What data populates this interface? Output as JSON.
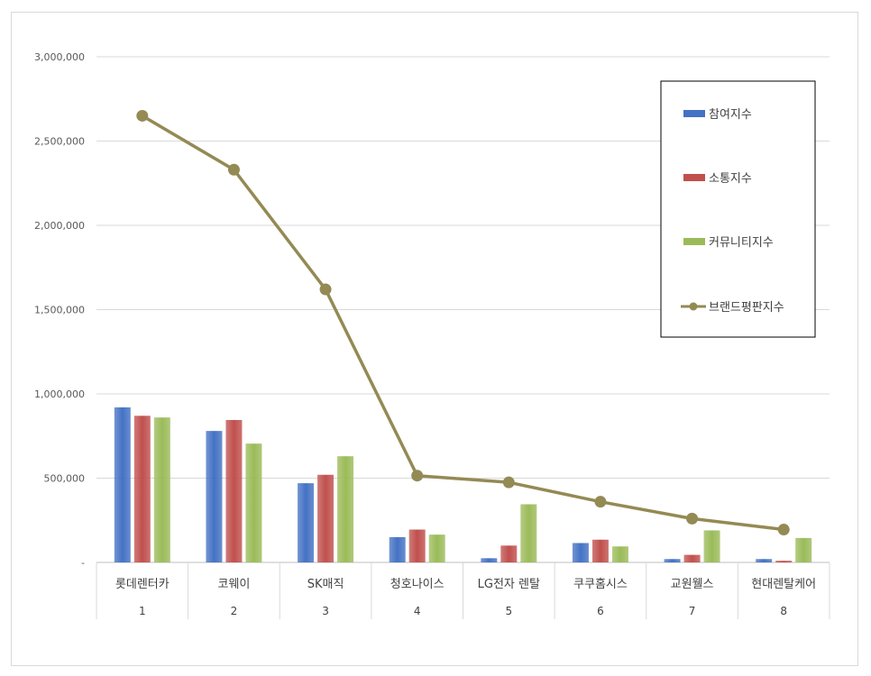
{
  "chart_data": {
    "type": "bar",
    "categories": [
      "롯데렌터카",
      "코웨이",
      "SK매직",
      "청호나이스",
      "LG전자 렌탈",
      "쿠쿠홈시스",
      "교원웰스",
      "현대렌탈케어"
    ],
    "ranks": [
      "1",
      "2",
      "3",
      "4",
      "5",
      "6",
      "7",
      "8"
    ],
    "ylim": [
      0,
      3000000
    ],
    "yticks": [
      0,
      500000,
      1000000,
      1500000,
      2000000,
      2500000,
      3000000
    ],
    "ytick_labels": [
      "-",
      "500,000",
      "1,000,000",
      "1,500,000",
      "2,000,000",
      "2,500,000",
      "3,000,000"
    ],
    "grid": true,
    "legend_position": "top-right",
    "series": [
      {
        "name": "참여지수",
        "type": "bar",
        "color": "#4472C4",
        "values": [
          920000,
          780000,
          470000,
          150000,
          25000,
          115000,
          20000,
          20000
        ]
      },
      {
        "name": "소통지수",
        "type": "bar",
        "color": "#C0504D",
        "values": [
          870000,
          845000,
          520000,
          195000,
          100000,
          135000,
          45000,
          10000
        ]
      },
      {
        "name": "커뮤니티지수",
        "type": "bar",
        "color": "#9BBB59",
        "values": [
          860000,
          705000,
          630000,
          165000,
          345000,
          95000,
          190000,
          145000
        ]
      },
      {
        "name": "브랜드평판지수",
        "type": "line",
        "color": "#948A54",
        "values": [
          2650000,
          2330000,
          1620000,
          515000,
          475000,
          360000,
          260000,
          195000
        ]
      }
    ]
  }
}
